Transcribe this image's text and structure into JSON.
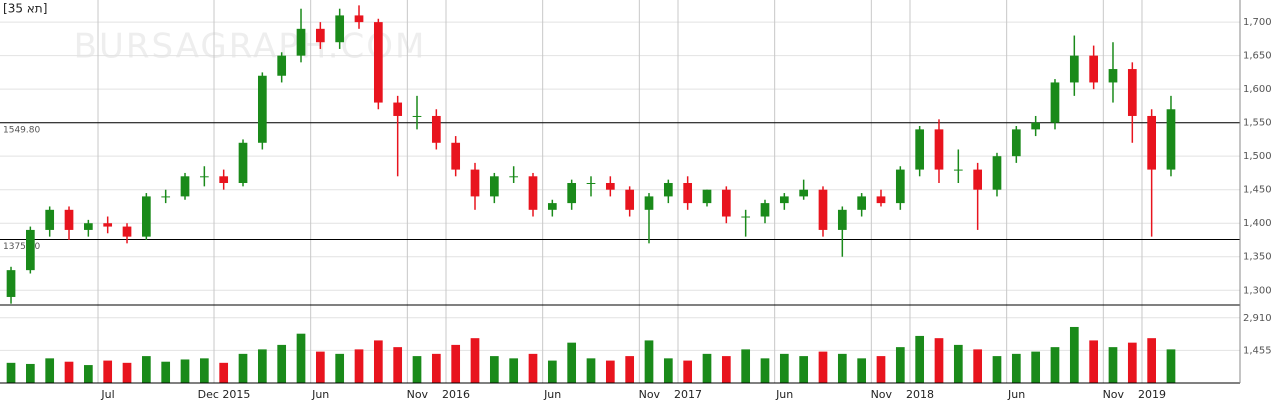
{
  "chart_data": {
    "type": "candlestick",
    "title": "[תא 35]",
    "watermark": "BURSAGRAPH.COM",
    "up_color": "#1a8a1a",
    "down_color": "#e8141e",
    "x": [
      -10.5,
      -9.5,
      -8.5,
      -7.5,
      -6.5,
      -5.5,
      -4.5,
      -3.5,
      -2.5,
      -1.5,
      -0.5,
      0.5,
      1.5,
      2.5,
      3.5,
      4.5,
      5.5,
      6.5,
      7.5,
      8.5,
      9.5,
      10.5,
      11.5,
      12.5,
      13.5,
      14.5,
      15.5,
      16.5,
      17.5,
      18.5,
      19.5,
      20.5,
      21.5,
      22.5,
      23.5,
      24.5,
      25.5,
      26.5,
      27.5,
      28.5,
      29.5,
      30.5,
      31.5,
      32.5,
      33.5,
      34.5,
      35.5,
      36.5,
      37.5,
      38.5,
      39.5,
      40.5,
      41.5,
      42.5,
      43.5,
      44.5,
      45.5,
      46.5,
      47.5,
      48.5,
      49.5
    ],
    "open": [
      1290,
      1330,
      1390,
      1420,
      1390,
      1400,
      1395,
      1380,
      1440,
      1440,
      1470,
      1470,
      1460,
      1520,
      1620,
      1650,
      1690,
      1670,
      1710,
      1700,
      1580,
      1560,
      1560,
      1520,
      1480,
      1440,
      1470,
      1470,
      1420,
      1430,
      1460,
      1460,
      1450,
      1420,
      1440,
      1460,
      1430,
      1450,
      1410,
      1410,
      1430,
      1440,
      1450,
      1390,
      1420,
      1440,
      1430,
      1480,
      1540,
      1480,
      1480,
      1450,
      1500,
      1540,
      1550,
      1610,
      1650,
      1610,
      1630,
      1560,
      1480
    ],
    "high": [
      1335,
      1395,
      1425,
      1425,
      1405,
      1410,
      1400,
      1445,
      1450,
      1475,
      1485,
      1480,
      1525,
      1625,
      1655,
      1720,
      1700,
      1720,
      1725,
      1705,
      1590,
      1590,
      1570,
      1530,
      1490,
      1475,
      1485,
      1475,
      1435,
      1465,
      1470,
      1470,
      1455,
      1445,
      1465,
      1470,
      1450,
      1455,
      1420,
      1435,
      1445,
      1465,
      1455,
      1425,
      1445,
      1450,
      1485,
      1545,
      1555,
      1510,
      1490,
      1505,
      1545,
      1560,
      1615,
      1680,
      1665,
      1670,
      1640,
      1570,
      1590
    ],
    "low": [
      1280,
      1325,
      1380,
      1375,
      1380,
      1385,
      1370,
      1375,
      1430,
      1435,
      1455,
      1450,
      1455,
      1510,
      1610,
      1640,
      1660,
      1660,
      1690,
      1570,
      1470,
      1540,
      1510,
      1470,
      1420,
      1430,
      1460,
      1410,
      1410,
      1420,
      1440,
      1440,
      1410,
      1370,
      1430,
      1420,
      1425,
      1400,
      1380,
      1400,
      1420,
      1435,
      1380,
      1350,
      1410,
      1425,
      1420,
      1470,
      1460,
      1460,
      1390,
      1440,
      1490,
      1530,
      1540,
      1590,
      1600,
      1580,
      1520,
      1380,
      1470
    ],
    "close": [
      1330,
      1390,
      1420,
      1390,
      1400,
      1395,
      1380,
      1440,
      1440,
      1470,
      1470,
      1460,
      1520,
      1620,
      1650,
      1690,
      1670,
      1710,
      1700,
      1580,
      1560,
      1560,
      1520,
      1480,
      1440,
      1470,
      1470,
      1420,
      1430,
      1460,
      1460,
      1450,
      1420,
      1440,
      1460,
      1430,
      1450,
      1410,
      1410,
      1430,
      1440,
      1450,
      1390,
      1420,
      1440,
      1430,
      1480,
      1540,
      1480,
      1480,
      1450,
      1500,
      1540,
      1550,
      1610,
      1650,
      1610,
      1630,
      1560,
      1480,
      1570
    ],
    "volume": [
      900,
      850,
      1100,
      950,
      800,
      1000,
      900,
      1200,
      950,
      1050,
      1100,
      900,
      1300,
      1500,
      1700,
      2200,
      1400,
      1300,
      1500,
      1900,
      1600,
      1200,
      1300,
      1700,
      2000,
      1200,
      1100,
      1300,
      1000,
      1800,
      1100,
      1000,
      1200,
      1900,
      1100,
      1000,
      1300,
      1200,
      1500,
      1100,
      1300,
      1200,
      1400,
      1300,
      1100,
      1200,
      1600,
      2100,
      2000,
      1700,
      1500,
      1200,
      1300,
      1400,
      1600,
      2500,
      1900,
      1600,
      1800,
      2000,
      1500
    ],
    "xlim": [
      -11.07,
      53.07
    ],
    "xticks": [
      {
        "value": -6,
        "label": "Jul"
      },
      {
        "value": 0,
        "label": "Dec 2015"
      },
      {
        "value": 5,
        "label": "Jun"
      },
      {
        "value": 10,
        "label": "Nov"
      },
      12,
      17,
      22,
      24,
      29,
      34,
      36,
      41,
      46,
      48
    ],
    "xtick_labels": [
      "Jul",
      "Dec 2015",
      "Jun",
      "Nov",
      "2016",
      "Jun",
      "Nov",
      "2017",
      "Jun",
      "Nov",
      "2018",
      "Jun",
      "Nov",
      "2019"
    ],
    "ylim": [
      1278,
      1733
    ],
    "yticks": [
      {
        "value": 1300,
        "label": "1,300"
      },
      {
        "value": 1350,
        "label": "1,350"
      },
      {
        "value": 1400,
        "label": "1,400"
      },
      {
        "value": 1450,
        "label": "1,450"
      },
      {
        "value": 1500,
        "label": "1,500"
      },
      {
        "value": 1550,
        "label": "1,550"
      },
      {
        "value": 1600,
        "label": "1,600"
      },
      {
        "value": 1650,
        "label": "1,650"
      },
      {
        "value": 1700,
        "label": "1,700"
      }
    ],
    "volume_ylim": [
      0,
      3480
    ],
    "volume_ticks": [
      {
        "value": 1455,
        "label": "1,455"
      },
      {
        "value": 2910,
        "label": "2,910"
      }
    ],
    "ref_lines": [
      {
        "value": 1549.8,
        "label": "1549.80"
      },
      {
        "value": 1375.7,
        "label": "1375.70"
      }
    ]
  }
}
